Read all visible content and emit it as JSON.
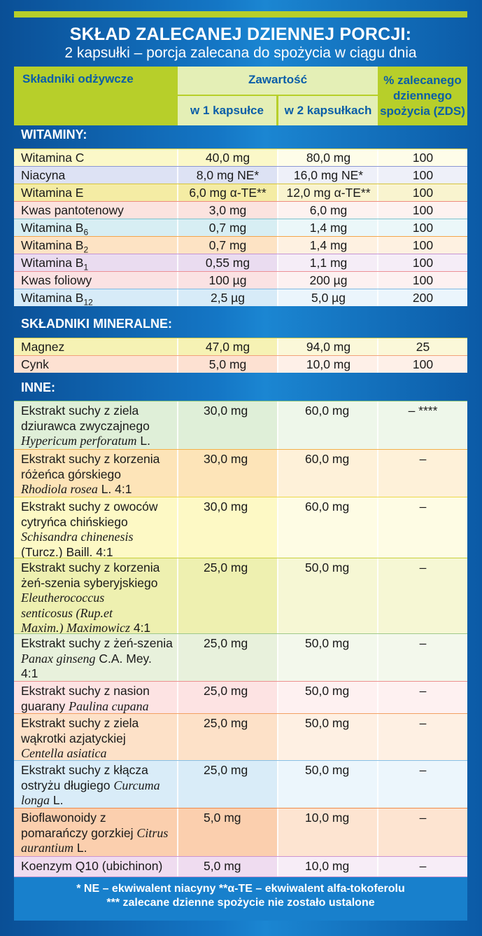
{
  "title": {
    "line1": "SKŁAD ZALECANEJ DZIENNEJ PORCJI:",
    "line2": "2 kapsułki – porcja zalecana do spożycia w ciągu dnia"
  },
  "header": {
    "col1": "Składniki odżywcze",
    "col_group": "Zawartość",
    "col2": "w 1 kapsułce",
    "col3": "w 2 kapsułkach",
    "col4_l1": "% zalecanego",
    "col4_l2": "dziennego",
    "col4_l3": "spożycia (ZDS)"
  },
  "sections": {
    "vitamins": "WITAMINY:",
    "minerals": "SKŁADNIKI MINERALNE:",
    "others": "INNE:"
  },
  "vitamins": [
    {
      "name": "Witamina C",
      "sub": "",
      "v1": "40,0 mg",
      "v2": "80,0 mg",
      "zds": "100"
    },
    {
      "name": "Niacyna",
      "sub": "",
      "v1": "8,0 mg NE*",
      "v2": "16,0 mg NE*",
      "zds": "100"
    },
    {
      "name": "Witamina E",
      "sub": "",
      "v1": "6,0 mg α-TE**",
      "v2": "12,0 mg α-TE**",
      "zds": "100"
    },
    {
      "name": "Kwas pantotenowy",
      "sub": "",
      "v1": "3,0 mg",
      "v2": "6,0 mg",
      "zds": "100"
    },
    {
      "name": "Witamina B",
      "sub": "6",
      "v1": "0,7 mg",
      "v2": "1,4 mg",
      "zds": "100"
    },
    {
      "name": "Witamina B",
      "sub": "2",
      "v1": "0,7 mg",
      "v2": "1,4 mg",
      "zds": "100"
    },
    {
      "name": "Witamina B",
      "sub": "1",
      "v1": "0,55 mg",
      "v2": "1,1 mg",
      "zds": "100"
    },
    {
      "name": "Kwas foliowy",
      "sub": "",
      "v1": "100 µg",
      "v2": "200 µg",
      "zds": "100"
    },
    {
      "name": "Witamina B",
      "sub": "12",
      "v1": "2,5 µg",
      "v2": "5,0 µg",
      "zds": "200"
    }
  ],
  "minerals": [
    {
      "name": "Magnez",
      "v1": "47,0 mg",
      "v2": "94,0 mg",
      "zds": "25"
    },
    {
      "name": "Cynk",
      "v1": "5,0 mg",
      "v2": "10,0 mg",
      "zds": "100"
    }
  ],
  "others": [
    {
      "name_lines": [
        {
          "t": "Ekstrakt suchy z ziela"
        },
        {
          "t": "dziurawca zwyczajnego"
        },
        {
          "i": "Hypericum perforatum",
          "t": " L."
        }
      ],
      "v1": "30,0 mg",
      "v2": "60,0 mg",
      "zds": "– ****"
    },
    {
      "name_lines": [
        {
          "t": "Ekstrakt suchy z korzenia"
        },
        {
          "t": "różeńca górskiego"
        },
        {
          "i": "Rhodiola rosea",
          "t": " L. 4:1"
        }
      ],
      "v1": "30,0 mg",
      "v2": "60,0 mg",
      "zds": "–"
    },
    {
      "name_lines": [
        {
          "t": "Ekstrakt suchy z owoców"
        },
        {
          "t": "cytryńca chińskiego"
        },
        {
          "i": "Schisandra chinenesis"
        },
        {
          "t": "(Turcz.) Baill. 4:1"
        }
      ],
      "v1": "30,0 mg",
      "v2": "60,0 mg",
      "zds": "–"
    },
    {
      "name_lines": [
        {
          "t": "Ekstrakt suchy z korzenia"
        },
        {
          "t": "żeń-szenia syberyjskiego"
        },
        {
          "i": "Eleutherococcus"
        },
        {
          "i": "senticosus (Rup.et"
        },
        {
          "i": "Maxim.) Maximowicz",
          "t": " 4:1"
        }
      ],
      "v1": "25,0 mg",
      "v2": "50,0 mg",
      "zds": "–"
    },
    {
      "name_lines": [
        {
          "t": "Ekstrakt suchy z żeń-szenia"
        },
        {
          "i": "Panax ginseng",
          "t": " C.A. Mey."
        },
        {
          "t": "4:1"
        }
      ],
      "v1": "25,0 mg",
      "v2": "50,0 mg",
      "zds": "–"
    },
    {
      "name_lines": [
        {
          "t": "Ekstrakt suchy z nasion"
        },
        {
          "t": "guarany ",
          "i2": "Paulina cupana"
        }
      ],
      "v1": "25,0 mg",
      "v2": "50,0 mg",
      "zds": "–"
    },
    {
      "name_lines": [
        {
          "t": "Ekstrakt suchy z ziela"
        },
        {
          "t": "wąkrotki azjatyckiej"
        },
        {
          "i": "Centella asiatica"
        }
      ],
      "v1": "25,0 mg",
      "v2": "50,0 mg",
      "zds": "–"
    },
    {
      "name_lines": [
        {
          "t": "Ekstrakt suchy z kłącza"
        },
        {
          "t": "ostryżu długiego ",
          "i2": "Curcuma"
        },
        {
          "i": "longa",
          "t": " L."
        }
      ],
      "v1": "25,0 mg",
      "v2": "50,0 mg",
      "zds": "–"
    },
    {
      "name_lines": [
        {
          "t": "Bioflawonoidy z"
        },
        {
          "t": "pomarańczy gorzkiej ",
          "i2": "Citrus"
        },
        {
          "i": "aurantium",
          "t": " L."
        }
      ],
      "v1": "5,0 mg",
      "v2": "10,0 mg",
      "zds": "–"
    },
    {
      "name_lines": [
        {
          "t": "Koenzym Q10 (ubichinon)"
        }
      ],
      "v1": "5,0 mg",
      "v2": "10,0 mg",
      "zds": "–"
    }
  ],
  "footer": {
    "line1": "* NE – ekwiwalent niacyny     **α-TE – ekwiwalent alfa-tokoferolu",
    "line2": "*** zalecane dzienne spożycie nie zostało ustalone"
  },
  "colors": {
    "background": "#0a5ea8",
    "accent_green": "#b7cf2a",
    "header_light": "#e4efb6",
    "header_text": "#0a5ea8",
    "footer_bg": "#1880cc"
  }
}
